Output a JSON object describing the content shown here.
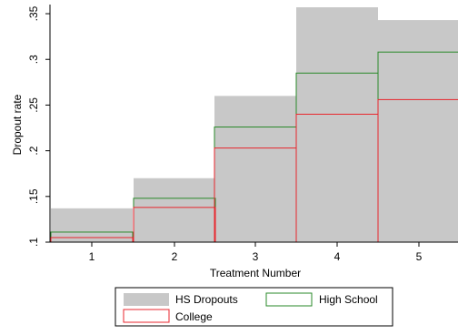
{
  "chart_data": {
    "type": "bar",
    "categories": [
      "1",
      "2",
      "3",
      "4",
      "5"
    ],
    "series": [
      {
        "name": "HS Dropouts",
        "values": [
          0.137,
          0.17,
          0.26,
          0.357,
          0.343
        ],
        "color": "#c8c8c8",
        "style": "filled"
      },
      {
        "name": "High School",
        "values": [
          0.111,
          0.148,
          0.226,
          0.285,
          0.308
        ],
        "color": "#2a8a2a",
        "style": "outline"
      },
      {
        "name": "College",
        "values": [
          0.105,
          0.138,
          0.203,
          0.24,
          0.256
        ],
        "color": "#e8262d",
        "style": "outline"
      }
    ],
    "xlabel": "Treatment Number",
    "ylabel": "Dropout rate",
    "ylim": [
      0.1,
      0.36
    ],
    "y_ticks": [
      0.1,
      0.15,
      0.2,
      0.25,
      0.3,
      0.35
    ],
    "y_tick_labels": [
      ".1",
      ".15",
      ".2",
      ".25",
      ".3",
      ".35"
    ],
    "grid": false,
    "legend_position": "bottom"
  }
}
